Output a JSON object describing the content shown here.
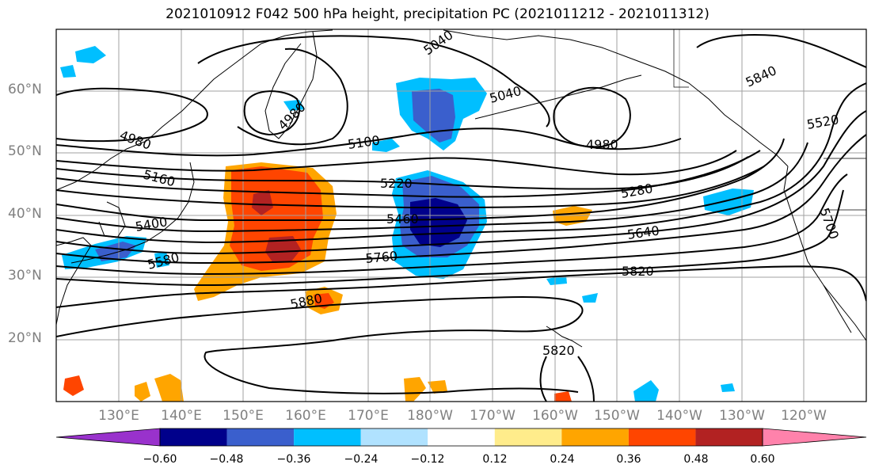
{
  "title": "2021010912 F042 500 hPa height, precipitation PC (2021011212 - 2021011312)",
  "latitude_labels": [
    "60°N",
    "50°N",
    "40°N",
    "30°N",
    "20°N"
  ],
  "longitude_labels": [
    "130°E",
    "140°E",
    "150°E",
    "160°E",
    "170°E",
    "180°W",
    "170°W",
    "160°W",
    "150°W",
    "140°W",
    "130°W",
    "120°W"
  ],
  "contour_labels": [
    "5040",
    "5040",
    "4980",
    "4980",
    "4980",
    "5100",
    "5160",
    "5220",
    "5280",
    "5400",
    "5460",
    "5580",
    "5520",
    "5640",
    "5700",
    "5760",
    "5820",
    "5820",
    "5840",
    "5880"
  ],
  "colorbar": {
    "ticks": [
      "−0.60",
      "−0.48",
      "−0.36",
      "−0.24",
      "−0.12",
      "0.12",
      "0.24",
      "0.36",
      "0.48",
      "0.60"
    ],
    "colors": [
      "#9932cc",
      "#00008b",
      "#3a5fcd",
      "#00bfff",
      "#b0e2ff",
      "#ffffff",
      "#ffec8b",
      "#ffa500",
      "#ff4500",
      "#b22222",
      "#ff82ab"
    ]
  },
  "palette": {
    "contour": "#000000",
    "grid": "#a0a0a0",
    "coast": "#000000"
  }
}
